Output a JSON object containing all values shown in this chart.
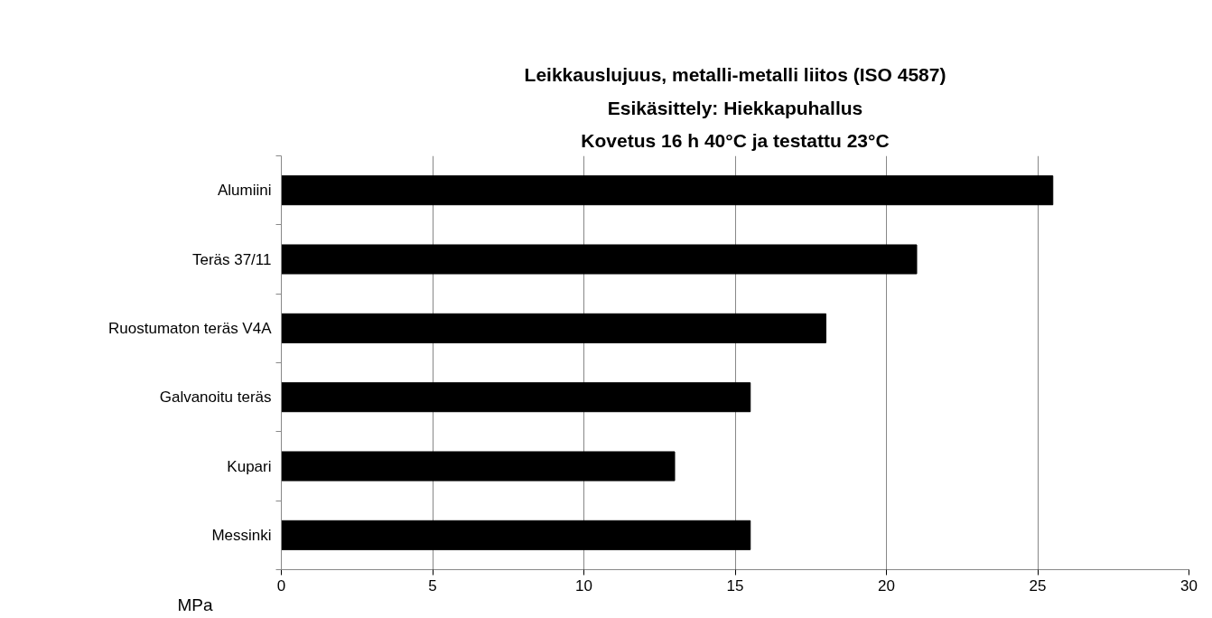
{
  "chart_data": {
    "type": "bar",
    "orientation": "horizontal",
    "title": "Leikkauslujuus, metalli-metalli liitos (ISO 4587)\nEsikäsittely: Hiekkapuhallus\nKovetus 16 h 40°C ja testattu 23°C",
    "xlabel": "MPa",
    "categories": [
      "Alumiini",
      "Teräs 37/11",
      "Ruostumaton teräs V4A",
      "Galvanoitu teräs",
      "Kupari",
      "Messinki"
    ],
    "values": [
      25.5,
      21,
      18,
      15.5,
      13,
      15.5
    ],
    "color": "#000000",
    "xlim": [
      0,
      30
    ],
    "xticks": [
      0,
      5,
      10,
      15,
      20,
      25,
      30
    ],
    "grid": "x"
  }
}
